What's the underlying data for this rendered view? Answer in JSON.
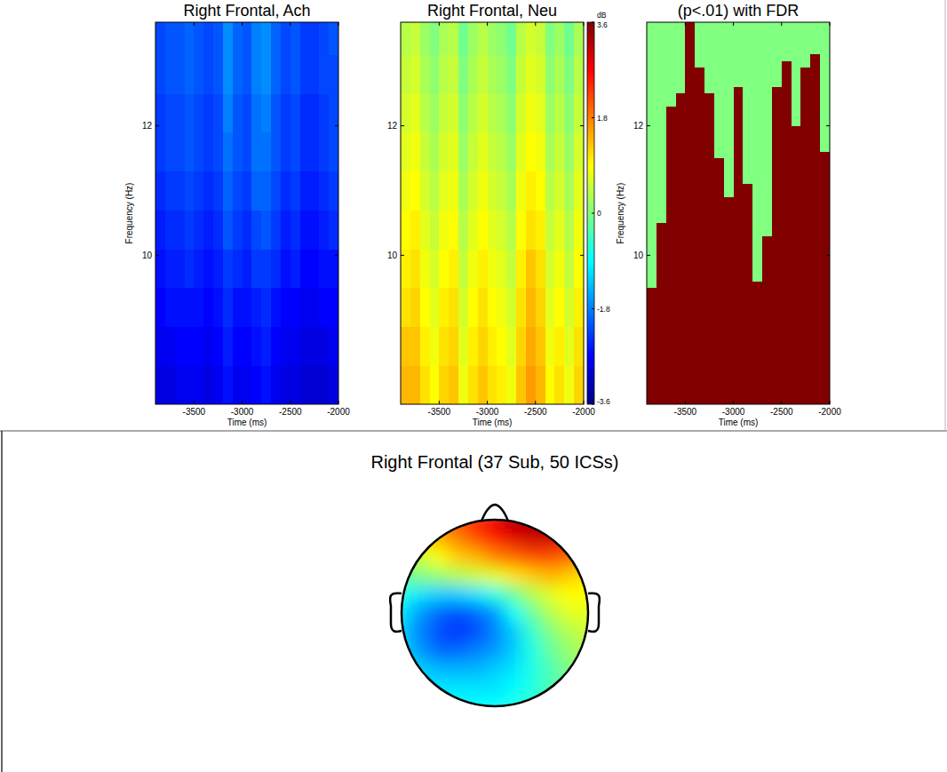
{
  "chart_data": [
    {
      "type": "heatmap",
      "title": "Right Frontal, Ach",
      "xlabel": "Time (ms)",
      "ylabel": "Frequency (Hz)",
      "xlim": [
        -3900,
        -2000
      ],
      "xticks": [
        -3500,
        -3000,
        -2500,
        -2000
      ],
      "ylim": [
        7.7,
        13.6
      ],
      "yticks": [
        10,
        12
      ],
      "color_range": [
        -3.6,
        3.6
      ],
      "time_edges": [
        -3900,
        -3800,
        -3700,
        -3600,
        -3500,
        -3400,
        -3300,
        -3200,
        -3100,
        -3000,
        -2900,
        -2800,
        -2700,
        -2600,
        -2500,
        -2400,
        -2300,
        -2200,
        -2100,
        -2000
      ],
      "freq_edges": [
        7.7,
        8.3,
        8.9,
        9.5,
        10.1,
        10.7,
        11.3,
        11.9,
        12.5,
        13.1,
        13.6
      ],
      "cells": [
        [
          -2.9,
          -2.9,
          -2.8,
          -2.8,
          -2.8,
          -2.9,
          -2.8,
          -2.6,
          -2.8,
          -2.8,
          -2.7,
          -2.6,
          -2.8,
          -2.9,
          -2.9,
          -3.0,
          -3.0,
          -3.0,
          -2.9
        ],
        [
          -2.8,
          -2.8,
          -2.7,
          -2.7,
          -2.7,
          -2.8,
          -2.7,
          -2.5,
          -2.7,
          -2.7,
          -2.6,
          -2.5,
          -2.7,
          -2.8,
          -2.8,
          -2.9,
          -2.9,
          -2.9,
          -2.8
        ],
        [
          -2.7,
          -2.6,
          -2.6,
          -2.6,
          -2.6,
          -2.7,
          -2.6,
          -2.4,
          -2.6,
          -2.6,
          -2.5,
          -2.4,
          -2.6,
          -2.7,
          -2.7,
          -2.8,
          -2.8,
          -2.7,
          -2.7
        ],
        [
          -2.6,
          -2.5,
          -2.5,
          -2.4,
          -2.5,
          -2.6,
          -2.5,
          -2.3,
          -2.4,
          -2.5,
          -2.3,
          -2.3,
          -2.4,
          -2.6,
          -2.5,
          -2.7,
          -2.7,
          -2.6,
          -2.6
        ],
        [
          -2.5,
          -2.4,
          -2.4,
          -2.3,
          -2.4,
          -2.5,
          -2.4,
          -2.1,
          -2.3,
          -2.4,
          -2.2,
          -2.1,
          -2.3,
          -2.5,
          -2.4,
          -2.6,
          -2.6,
          -2.5,
          -2.4
        ],
        [
          -2.4,
          -2.3,
          -2.3,
          -2.2,
          -2.3,
          -2.4,
          -2.3,
          -2.0,
          -2.2,
          -2.3,
          -2.0,
          -2.0,
          -2.2,
          -2.4,
          -2.3,
          -2.5,
          -2.5,
          -2.4,
          -2.3
        ],
        [
          -2.3,
          -2.2,
          -2.2,
          -2.1,
          -2.2,
          -2.3,
          -2.2,
          -1.9,
          -2.1,
          -2.2,
          -1.9,
          -1.9,
          -2.1,
          -2.3,
          -2.2,
          -2.4,
          -2.4,
          -2.3,
          -2.2
        ],
        [
          -2.3,
          -2.2,
          -2.2,
          -2.1,
          -2.2,
          -2.3,
          -2.2,
          -1.8,
          -2.1,
          -2.2,
          -1.9,
          -1.8,
          -2.1,
          -2.3,
          -2.2,
          -2.4,
          -2.4,
          -2.3,
          -2.2
        ],
        [
          -2.2,
          -2.1,
          -2.1,
          -2.0,
          -2.1,
          -2.2,
          -2.1,
          -1.7,
          -2.0,
          -2.1,
          -1.8,
          -1.7,
          -2.0,
          -2.2,
          -2.1,
          -2.3,
          -2.3,
          -2.2,
          -2.2
        ],
        [
          -2.2,
          -2.1,
          -2.1,
          -2.0,
          -2.1,
          -2.2,
          -2.1,
          -1.7,
          -2.0,
          -2.1,
          -1.8,
          -1.7,
          -2.0,
          -2.2,
          -2.1,
          -2.3,
          -2.3,
          -2.2,
          -2.1
        ]
      ]
    },
    {
      "type": "heatmap",
      "title": "Right Frontal, Neu",
      "xlabel": "Time (ms)",
      "xlim": [
        -3900,
        -2000
      ],
      "xticks": [
        -3500,
        -3000,
        -2500,
        -2000
      ],
      "ylim": [
        7.7,
        13.6
      ],
      "yticks": [
        10,
        12
      ],
      "color_range": [
        -3.6,
        3.6
      ],
      "colorbar": {
        "label": "dB",
        "range": [
          -3.6,
          3.6
        ],
        "ticks": [
          3.6,
          1.8,
          0,
          -1.8,
          -3.6
        ]
      },
      "time_edges": [
        -3900,
        -3800,
        -3700,
        -3600,
        -3500,
        -3400,
        -3300,
        -3200,
        -3100,
        -3000,
        -2900,
        -2800,
        -2700,
        -2600,
        -2500,
        -2400,
        -2300,
        -2200,
        -2100,
        -2000
      ],
      "freq_edges": [
        7.7,
        8.3,
        8.9,
        9.5,
        10.1,
        10.7,
        11.3,
        11.9,
        12.5,
        13.1,
        13.6
      ],
      "cells": [
        [
          1.4,
          1.4,
          1.1,
          0.9,
          1.2,
          1.3,
          0.8,
          1.1,
          1.3,
          1.1,
          1.0,
          0.8,
          1.3,
          1.6,
          1.4,
          0.9,
          1.1,
          0.8,
          1.2
        ],
        [
          1.3,
          1.3,
          1.0,
          0.8,
          1.1,
          1.2,
          0.7,
          1.0,
          1.2,
          1.0,
          0.9,
          0.7,
          1.2,
          1.5,
          1.3,
          0.8,
          1.0,
          0.7,
          1.1
        ],
        [
          1.1,
          1.2,
          0.9,
          0.7,
          1.0,
          1.1,
          0.6,
          0.9,
          1.1,
          0.9,
          0.8,
          0.6,
          1.1,
          1.4,
          1.2,
          0.7,
          0.9,
          0.6,
          1.0
        ],
        [
          1.0,
          1.1,
          0.8,
          0.6,
          0.9,
          1.0,
          0.5,
          0.8,
          1.0,
          0.8,
          0.7,
          0.5,
          1.0,
          1.3,
          1.1,
          0.6,
          0.8,
          0.5,
          0.9
        ],
        [
          0.9,
          1.0,
          0.7,
          0.5,
          0.8,
          0.9,
          0.4,
          0.7,
          0.9,
          0.7,
          0.6,
          0.4,
          0.9,
          1.1,
          1.0,
          0.5,
          0.7,
          0.4,
          0.8
        ],
        [
          0.8,
          0.9,
          0.6,
          0.4,
          0.7,
          0.8,
          0.3,
          0.6,
          0.8,
          0.6,
          0.5,
          0.3,
          0.8,
          1.0,
          0.9,
          0.4,
          0.6,
          0.3,
          0.7
        ],
        [
          0.7,
          0.8,
          0.5,
          0.3,
          0.6,
          0.7,
          0.2,
          0.5,
          0.7,
          0.5,
          0.4,
          0.2,
          0.7,
          0.9,
          0.8,
          0.3,
          0.5,
          0.2,
          0.6
        ],
        [
          0.6,
          0.7,
          0.4,
          0.2,
          0.5,
          0.6,
          0.1,
          0.4,
          0.6,
          0.4,
          0.3,
          0.1,
          0.6,
          0.8,
          0.7,
          0.2,
          0.4,
          0.1,
          0.5
        ],
        [
          0.5,
          0.6,
          0.3,
          0.1,
          0.4,
          0.5,
          0.0,
          0.3,
          0.5,
          0.3,
          0.2,
          0.0,
          0.5,
          0.7,
          0.6,
          0.1,
          0.3,
          0.0,
          0.4
        ],
        [
          0.4,
          0.5,
          0.2,
          0.0,
          0.3,
          0.4,
          -0.1,
          0.2,
          0.4,
          0.2,
          0.1,
          -0.1,
          0.4,
          0.6,
          0.5,
          0.0,
          0.2,
          -0.1,
          0.3
        ]
      ]
    },
    {
      "type": "mask",
      "title": "(p<.01) with FDR",
      "xlabel": "Time (ms)",
      "ylabel": "Frequency (Hz)",
      "xlim": [
        -3900,
        -2000
      ],
      "xticks": [
        -3500,
        -3000,
        -2500,
        -2000
      ],
      "ylim": [
        7.7,
        13.6
      ],
      "yticks": [
        10,
        12
      ],
      "color_range": [
        -3.6,
        3.6
      ],
      "time_edges": [
        -3900,
        -3800,
        -3700,
        -3600,
        -3500,
        -3400,
        -3300,
        -3200,
        -3100,
        -3000,
        -2900,
        -2800,
        -2700,
        -2600,
        -2500,
        -2400,
        -2300,
        -2200,
        -2100,
        -2000
      ],
      "significant_below_hz": [
        9.5,
        10.5,
        12.3,
        12.5,
        13.6,
        12.9,
        12.5,
        11.5,
        10.9,
        12.6,
        11.1,
        9.6,
        10.3,
        12.6,
        13.0,
        12.0,
        12.9,
        13.1,
        11.6
      ]
    },
    {
      "type": "topomap",
      "title": "Right Frontal (37 Sub, 50 ICSs)",
      "color_range": [
        -1,
        1
      ],
      "cells": [
        [
          0.3,
          0.4,
          0.5,
          0.6,
          0.7,
          0.8,
          0.9,
          0.9,
          0.9,
          0.8,
          0.7
        ],
        [
          0.2,
          0.3,
          0.4,
          0.5,
          0.6,
          0.7,
          0.8,
          0.85,
          0.85,
          0.75,
          0.6
        ],
        [
          0.1,
          0.15,
          0.25,
          0.35,
          0.4,
          0.5,
          0.55,
          0.6,
          0.6,
          0.55,
          0.45
        ],
        [
          -0.05,
          0.0,
          0.05,
          0.1,
          0.15,
          0.2,
          0.3,
          0.35,
          0.4,
          0.35,
          0.3
        ],
        [
          -0.2,
          -0.3,
          -0.35,
          -0.35,
          -0.3,
          -0.2,
          -0.05,
          0.1,
          0.2,
          0.25,
          0.25
        ],
        [
          -0.3,
          -0.45,
          -0.55,
          -0.6,
          -0.55,
          -0.45,
          -0.25,
          -0.05,
          0.1,
          0.2,
          0.2
        ],
        [
          -0.35,
          -0.5,
          -0.6,
          -0.65,
          -0.6,
          -0.5,
          -0.35,
          -0.15,
          0.0,
          0.1,
          0.15
        ],
        [
          -0.35,
          -0.45,
          -0.55,
          -0.55,
          -0.5,
          -0.45,
          -0.35,
          -0.2,
          -0.05,
          0.05,
          0.1
        ],
        [
          -0.3,
          -0.35,
          -0.4,
          -0.4,
          -0.4,
          -0.35,
          -0.3,
          -0.2,
          -0.1,
          0.0,
          0.05
        ],
        [
          -0.25,
          -0.3,
          -0.3,
          -0.3,
          -0.3,
          -0.3,
          -0.25,
          -0.2,
          -0.1,
          -0.05,
          0.0
        ],
        [
          -0.2,
          -0.25,
          -0.25,
          -0.25,
          -0.25,
          -0.25,
          -0.2,
          -0.15,
          -0.1,
          -0.05,
          0.0
        ]
      ]
    }
  ]
}
